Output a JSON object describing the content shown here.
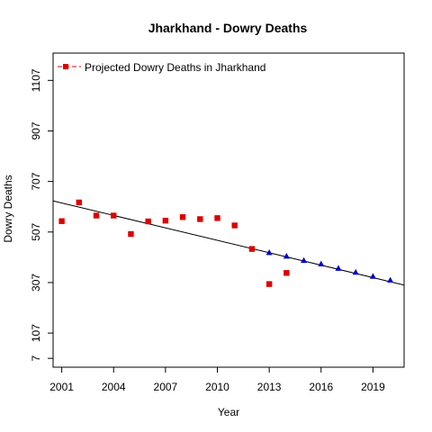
{
  "chart_data": {
    "type": "scatter",
    "title": "Jharkhand  -  Dowry Deaths",
    "xlabel": "Year",
    "ylabel": "Dowry Deaths",
    "xlim": [
      2000.5,
      2020.8
    ],
    "ylim": [
      -28,
      1215
    ],
    "x_ticks": [
      2001,
      2004,
      2007,
      2010,
      2013,
      2016,
      2019
    ],
    "y_ticks": [
      7,
      107,
      307,
      507,
      707,
      907,
      1107
    ],
    "grid": false,
    "legend": {
      "position": "top-left",
      "entries": [
        "Projected  Dowry Deaths  in  Jharkhand"
      ]
    },
    "colors": {
      "actual": "#dd0000",
      "projected": "#0000cc",
      "trend": "#000000"
    },
    "series": [
      {
        "name": "Projected  Dowry Deaths  in  Jharkhand",
        "marker": "square",
        "color": "#dd0000",
        "x": [
          2001,
          2002,
          2003,
          2004,
          2005,
          2006,
          2007,
          2008,
          2009,
          2010,
          2011,
          2012,
          2013,
          2014
        ],
        "y": [
          550,
          624,
          572,
          572,
          499,
          549,
          552,
          566,
          558,
          562,
          533,
          440,
          301,
          345
        ]
      },
      {
        "marker": "triangle",
        "color": "#0000cc",
        "x": [
          2013,
          2014,
          2015,
          2016,
          2017,
          2018,
          2019,
          2020
        ],
        "y": [
          425,
          411,
          394,
          380,
          363,
          347,
          331,
          316
        ]
      }
    ],
    "trend_line": {
      "x": [
        2000.5,
        2020.8
      ],
      "y": [
        630,
        297
      ]
    }
  }
}
